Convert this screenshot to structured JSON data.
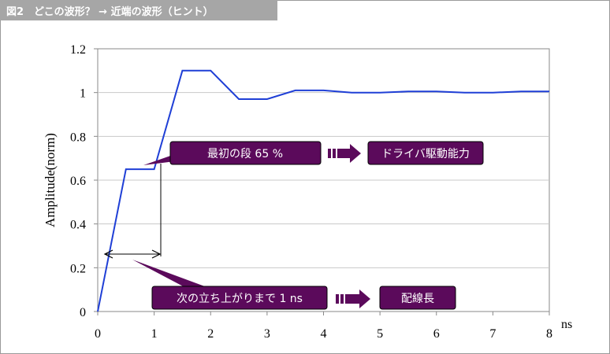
{
  "header": {
    "title": "図2　どこの波形？ → 近端の波形（ヒント）"
  },
  "colors": {
    "title_bg": "#a6a6a6",
    "waveform": "#1f3fd6",
    "callout_fill": "#5b0a5b",
    "callout_text": "#ffffff",
    "grid": "#c8c8c8"
  },
  "chart_data": {
    "type": "line",
    "x": [
      0,
      0.5,
      1.0,
      1.5,
      2.0,
      2.5,
      3.0,
      3.5,
      4.0,
      4.5,
      5.0,
      5.5,
      6.0,
      6.5,
      7.0,
      7.5,
      8.0
    ],
    "series": [
      {
        "values": [
          0,
          0.65,
          0.65,
          1.1,
          1.1,
          0.97,
          0.97,
          1.01,
          1.01,
          1.0,
          1.0,
          1.005,
          1.005,
          1.0,
          1.0,
          1.005,
          1.005
        ]
      }
    ],
    "xlabel": "ns",
    "ylabel": "Amplitude(norm)",
    "xlim": [
      0,
      8
    ],
    "ylim": [
      0,
      1.2
    ],
    "xticks": [
      "0",
      "1",
      "2",
      "3",
      "4",
      "5",
      "6",
      "7",
      "8"
    ],
    "yticks": [
      "0",
      "0.2",
      "0.4",
      "0.6",
      "0.8",
      "1",
      "1.2"
    ],
    "grid": "horizontal",
    "annotations": {
      "first_step": "最初の段 65 %",
      "drive": "ドライバ駆動能力",
      "rise": "次の立ち上がりまで 1 ns",
      "wiring": "配線長"
    }
  }
}
